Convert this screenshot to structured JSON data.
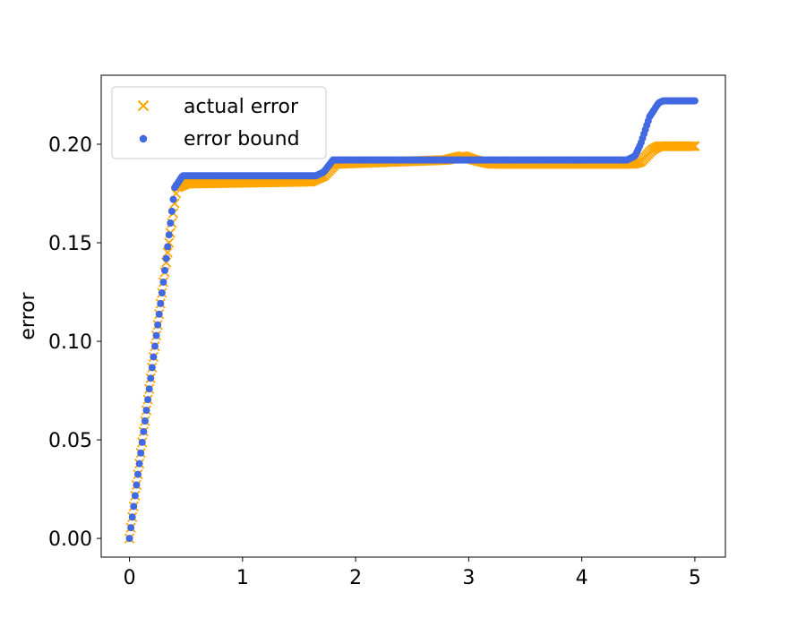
{
  "chart_data": {
    "type": "scatter",
    "title": "",
    "xlabel": "",
    "ylabel": "error",
    "xlim": [
      -0.25,
      5.27
    ],
    "ylim": [
      -0.0095,
      0.235
    ],
    "xticks": [
      0,
      1,
      2,
      3,
      4,
      5
    ],
    "xtick_labels": [
      "0",
      "1",
      "2",
      "3",
      "4",
      "5"
    ],
    "yticks": [
      0.0,
      0.05,
      0.1,
      0.15,
      0.2
    ],
    "ytick_labels": [
      "0.00",
      "0.05",
      "0.10",
      "0.15",
      "0.20"
    ],
    "grid": false,
    "legend": {
      "position": "top-left"
    },
    "series": [
      {
        "name": "actual error",
        "marker": "x",
        "color": "#FFA500",
        "knots": [
          [
            0,
            0
          ],
          [
            0.3,
            0.13
          ],
          [
            0.42,
            0.178
          ],
          [
            0.5,
            0.18
          ],
          [
            1.6,
            0.181
          ],
          [
            1.72,
            0.184
          ],
          [
            1.82,
            0.19
          ],
          [
            2.8,
            0.192
          ],
          [
            2.95,
            0.194
          ],
          [
            3.05,
            0.192
          ],
          [
            3.2,
            0.19
          ],
          [
            4.45,
            0.19
          ],
          [
            4.52,
            0.191
          ],
          [
            4.62,
            0.197
          ],
          [
            4.68,
            0.199
          ],
          [
            5,
            0.199
          ]
        ]
      },
      {
        "name": "error bound",
        "marker": "o",
        "color": "#4169E1",
        "knots": [
          [
            0,
            0
          ],
          [
            0.3,
            0.13
          ],
          [
            0.4,
            0.178
          ],
          [
            0.47,
            0.184
          ],
          [
            1.65,
            0.184
          ],
          [
            1.72,
            0.186
          ],
          [
            1.8,
            0.192
          ],
          [
            4.4,
            0.192
          ],
          [
            4.47,
            0.194
          ],
          [
            4.52,
            0.2
          ],
          [
            4.6,
            0.214
          ],
          [
            4.68,
            0.221
          ],
          [
            4.72,
            0.222
          ],
          [
            5,
            0.222
          ]
        ]
      }
    ]
  }
}
